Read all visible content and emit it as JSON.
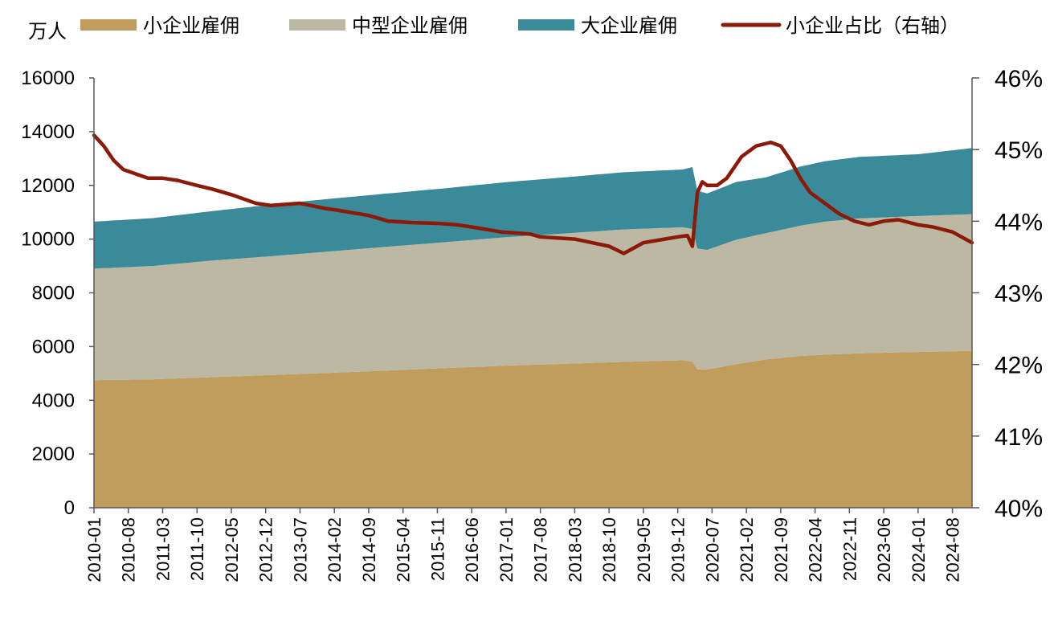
{
  "chart_data": {
    "type": "area",
    "stacked": true,
    "y_unit_label": "万人",
    "x_tick_labels": [
      "2010-01",
      "2010-08",
      "2011-03",
      "2011-10",
      "2012-05",
      "2012-12",
      "2013-07",
      "2014-02",
      "2014-09",
      "2015-04",
      "2015-11",
      "2016-06",
      "2017-01",
      "2017-08",
      "2018-03",
      "2018-10",
      "2019-05",
      "2019-12",
      "2020-07",
      "2021-02",
      "2021-09",
      "2022-04",
      "2022-11",
      "2023-06",
      "2024-01",
      "2024-08"
    ],
    "x_range": [
      "2010-01",
      "2024-12"
    ],
    "y_left": {
      "min": 0,
      "max": 16000,
      "ticks": [
        "0",
        "2000",
        "4000",
        "6000",
        "8000",
        "10000",
        "12000",
        "14000",
        "16000"
      ]
    },
    "y_right": {
      "min": 40,
      "max": 46,
      "ticks": [
        "40%",
        "41%",
        "42%",
        "43%",
        "44%",
        "45%",
        "46%"
      ]
    },
    "legend_position": "top",
    "series": [
      {
        "name": "小企业雇佣",
        "kind": "area",
        "axis": "left",
        "color": "#c09d5c",
        "points": [
          [
            "2010-01",
            4750
          ],
          [
            "2011-01",
            4780
          ],
          [
            "2012-01",
            4860
          ],
          [
            "2013-01",
            4940
          ],
          [
            "2014-01",
            5020
          ],
          [
            "2015-01",
            5110
          ],
          [
            "2016-01",
            5200
          ],
          [
            "2017-01",
            5290
          ],
          [
            "2018-01",
            5360
          ],
          [
            "2019-01",
            5430
          ],
          [
            "2020-01",
            5490
          ],
          [
            "2020-03",
            5430
          ],
          [
            "2020-04",
            5150
          ],
          [
            "2020-06",
            5150
          ],
          [
            "2020-12",
            5350
          ],
          [
            "2021-06",
            5520
          ],
          [
            "2022-01",
            5650
          ],
          [
            "2022-06",
            5700
          ],
          [
            "2023-01",
            5750
          ],
          [
            "2024-01",
            5800
          ],
          [
            "2024-12",
            5840
          ]
        ]
      },
      {
        "name": "中型企业雇佣",
        "kind": "area",
        "axis": "left",
        "color": "#bcb8a4",
        "points": [
          [
            "2010-01",
            4150
          ],
          [
            "2011-01",
            4220
          ],
          [
            "2012-01",
            4340
          ],
          [
            "2013-01",
            4420
          ],
          [
            "2014-01",
            4520
          ],
          [
            "2015-01",
            4610
          ],
          [
            "2016-01",
            4690
          ],
          [
            "2017-01",
            4780
          ],
          [
            "2018-01",
            4850
          ],
          [
            "2019-01",
            4930
          ],
          [
            "2020-01",
            4950
          ],
          [
            "2020-03",
            4950
          ],
          [
            "2020-04",
            4500
          ],
          [
            "2020-06",
            4450
          ],
          [
            "2020-12",
            4630
          ],
          [
            "2021-06",
            4700
          ],
          [
            "2022-01",
            4850
          ],
          [
            "2022-06",
            4950
          ],
          [
            "2023-01",
            5020
          ],
          [
            "2024-01",
            5060
          ],
          [
            "2024-12",
            5090
          ]
        ]
      },
      {
        "name": "大企业雇佣",
        "kind": "area",
        "axis": "left",
        "color": "#3b8a9a",
        "points": [
          [
            "2010-01",
            1750
          ],
          [
            "2011-01",
            1780
          ],
          [
            "2012-01",
            1840
          ],
          [
            "2013-01",
            1920
          ],
          [
            "2014-01",
            1960
          ],
          [
            "2015-01",
            1980
          ],
          [
            "2016-01",
            2010
          ],
          [
            "2017-01",
            2050
          ],
          [
            "2018-01",
            2090
          ],
          [
            "2019-01",
            2130
          ],
          [
            "2020-01",
            2150
          ],
          [
            "2020-03",
            2300
          ],
          [
            "2020-04",
            2150
          ],
          [
            "2020-06",
            2100
          ],
          [
            "2020-12",
            2150
          ],
          [
            "2021-06",
            2080
          ],
          [
            "2022-01",
            2200
          ],
          [
            "2022-06",
            2250
          ],
          [
            "2023-01",
            2290
          ],
          [
            "2024-01",
            2300
          ],
          [
            "2024-12",
            2460
          ]
        ]
      },
      {
        "name": "小企业占比（右轴）",
        "kind": "line",
        "axis": "right",
        "color": "#8b1a08",
        "points": [
          [
            "2010-01",
            45.2
          ],
          [
            "2010-03",
            45.05
          ],
          [
            "2010-05",
            44.85
          ],
          [
            "2010-07",
            44.72
          ],
          [
            "2010-12",
            44.6
          ],
          [
            "2011-03",
            44.6
          ],
          [
            "2011-06",
            44.57
          ],
          [
            "2011-10",
            44.5
          ],
          [
            "2012-01",
            44.45
          ],
          [
            "2012-05",
            44.37
          ],
          [
            "2012-10",
            44.25
          ],
          [
            "2013-01",
            44.22
          ],
          [
            "2013-07",
            44.25
          ],
          [
            "2013-12",
            44.18
          ],
          [
            "2014-03",
            44.15
          ],
          [
            "2014-09",
            44.08
          ],
          [
            "2015-01",
            44.0
          ],
          [
            "2015-06",
            43.98
          ],
          [
            "2015-11",
            43.97
          ],
          [
            "2016-03",
            43.95
          ],
          [
            "2016-06",
            43.92
          ],
          [
            "2016-12",
            43.85
          ],
          [
            "2017-06",
            43.82
          ],
          [
            "2017-08",
            43.78
          ],
          [
            "2018-03",
            43.75
          ],
          [
            "2018-10",
            43.65
          ],
          [
            "2019-01",
            43.55
          ],
          [
            "2019-05",
            43.7
          ],
          [
            "2019-12",
            43.78
          ],
          [
            "2020-02",
            43.8
          ],
          [
            "2020-03",
            43.65
          ],
          [
            "2020-04",
            44.4
          ],
          [
            "2020-05",
            44.55
          ],
          [
            "2020-06",
            44.5
          ],
          [
            "2020-08",
            44.5
          ],
          [
            "2020-10",
            44.6
          ],
          [
            "2021-01",
            44.9
          ],
          [
            "2021-04",
            45.05
          ],
          [
            "2021-07",
            45.1
          ],
          [
            "2021-09",
            45.05
          ],
          [
            "2021-11",
            44.85
          ],
          [
            "2022-01",
            44.6
          ],
          [
            "2022-03",
            44.4
          ],
          [
            "2022-06",
            44.25
          ],
          [
            "2022-09",
            44.1
          ],
          [
            "2022-12",
            44.0
          ],
          [
            "2023-03",
            43.95
          ],
          [
            "2023-06",
            44.0
          ],
          [
            "2023-09",
            44.02
          ],
          [
            "2024-01",
            43.95
          ],
          [
            "2024-04",
            43.92
          ],
          [
            "2024-08",
            43.85
          ],
          [
            "2024-12",
            43.7
          ]
        ]
      }
    ]
  }
}
